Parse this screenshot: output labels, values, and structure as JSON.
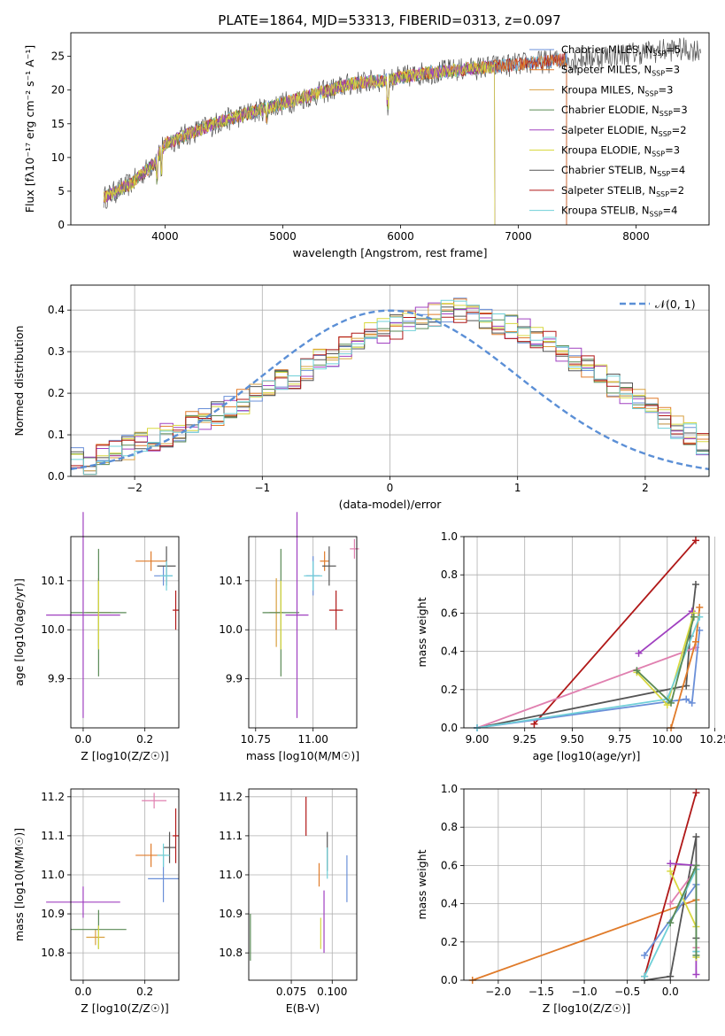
{
  "figure_title": "PLATE=1864, MJD=53313, FIBERID=0313, z=0.097",
  "model_colors": [
    "#6a8fd8",
    "#e07b2a",
    "#d8a040",
    "#5a8a55",
    "#a040c0",
    "#d8d840",
    "#555555",
    "#b01818",
    "#70d0d8"
  ],
  "chart_data": [
    {
      "id": "spectrum",
      "type": "line",
      "xlabel": "wavelength [Angstrom, rest frame]",
      "ylabel": "Flux [fλ10⁻¹⁷ erg cm⁻² s⁻¹ A⁻¹]",
      "xlim": [
        3200,
        8620
      ],
      "ylim": [
        0,
        28.5
      ],
      "xticks": [
        4000,
        5000,
        6000,
        7000,
        8000
      ],
      "yticks": [
        0,
        5,
        10,
        15,
        20,
        25
      ],
      "grid": false,
      "legend_position": "right",
      "continuum": {
        "x": [
          3480,
          3700,
          3900,
          4000,
          4200,
          4500,
          4800,
          5000,
          5300,
          5600,
          5900,
          6200,
          6500,
          6800,
          7100,
          7400,
          7700,
          8000,
          8300,
          8550
        ],
        "y": [
          4,
          6,
          9,
          12,
          13.5,
          15.5,
          17,
          18,
          19.5,
          21,
          21.5,
          22.5,
          23,
          23.5,
          24,
          24.5,
          25,
          25.5,
          26,
          26
        ]
      },
      "series": [
        {
          "name": "Chabrier MILES, N_SSP=5",
          "label_main": "Chabrier MILES, N",
          "label_sub": "SSP",
          "label_tail": "=5",
          "xmax": 7410
        },
        {
          "name": "Salpeter MILES, N_SSP=3",
          "label_main": "Salpeter MILES, N",
          "label_sub": "SSP",
          "label_tail": "=3",
          "xmax": 7410
        },
        {
          "name": "Kroupa MILES, N_SSP=3",
          "label_main": "Kroupa MILES, N",
          "label_sub": "SSP",
          "label_tail": "=3",
          "xmax": 6800
        },
        {
          "name": "Chabrier ELODIE, N_SSP=3",
          "label_main": "Chabrier ELODIE, N",
          "label_sub": "SSP",
          "label_tail": "=3",
          "xmax": 6800
        },
        {
          "name": "Salpeter ELODIE, N_SSP=2",
          "label_main": "Salpeter ELODIE, N",
          "label_sub": "SSP",
          "label_tail": "=2",
          "xmax": 6800
        },
        {
          "name": "Kroupa ELODIE, N_SSP=3",
          "label_main": "Kroupa ELODIE, N",
          "label_sub": "SSP",
          "label_tail": "=3",
          "xmax": 6800
        },
        {
          "name": "Chabrier STELIB, N_SSP=4",
          "label_main": "Chabrier STELIB, N",
          "label_sub": "SSP",
          "label_tail": "=4",
          "xmax": 8550
        },
        {
          "name": "Salpeter STELIB, N_SSP=2",
          "label_main": "Salpeter STELIB, N",
          "label_sub": "SSP",
          "label_tail": "=2",
          "xmax": 7410
        },
        {
          "name": "Kroupa STELIB, N_SSP=4",
          "label_main": "Kroupa STELIB, N",
          "label_sub": "SSP",
          "label_tail": "=4",
          "xmax": 7410
        }
      ]
    },
    {
      "id": "residuals",
      "type": "histogram",
      "xlabel": "(data-model)/error",
      "ylabel": "Normed distribution",
      "xlim": [
        -2.5,
        2.5
      ],
      "ylim": [
        0,
        0.46
      ],
      "xticks": [
        -2,
        -1,
        0,
        1,
        2
      ],
      "yticks": [
        0.0,
        0.1,
        0.2,
        0.3,
        0.4
      ],
      "grid": true,
      "legend_position": "top-right",
      "legend_label": "𝒩(0, 1)",
      "bin_width": 0.1,
      "bin_start": -2.5,
      "typical_bin_values": [
        0.04,
        0.03,
        0.05,
        0.06,
        0.07,
        0.08,
        0.09,
        0.1,
        0.11,
        0.13,
        0.14,
        0.15,
        0.17,
        0.18,
        0.2,
        0.21,
        0.23,
        0.24,
        0.26,
        0.28,
        0.29,
        0.31,
        0.32,
        0.34,
        0.35,
        0.36,
        0.37,
        0.38,
        0.39,
        0.4,
        0.4,
        0.39,
        0.38,
        0.37,
        0.36,
        0.35,
        0.33,
        0.32,
        0.3,
        0.28,
        0.26,
        0.24,
        0.22,
        0.2,
        0.18,
        0.16,
        0.14,
        0.12,
        0.1,
        0.08
      ],
      "normal_curve": {
        "mean": 0,
        "sigma": 1
      }
    },
    {
      "id": "age_vs_Z",
      "type": "errorbar",
      "xlabel": "Z [log10(Z/Z☉)]",
      "ylabel": "age [log10(age/yr)]",
      "xlim": [
        -0.04,
        0.31
      ],
      "ylim": [
        9.8,
        10.19
      ],
      "xticks": [
        0.0,
        0.2
      ],
      "yticks": [
        9.9,
        10.0,
        10.1
      ],
      "grid": true,
      "points": [
        {
          "x": 0.26,
          "y": 10.11,
          "xerr": 0.03,
          "yerr": 0.02,
          "c": 0
        },
        {
          "x": 0.22,
          "y": 10.14,
          "xerr": 0.05,
          "yerr": 0.02,
          "c": 1
        },
        {
          "x": 0.05,
          "y": 10.035,
          "xerr": 0.04,
          "yerr": 0.07,
          "c": 2
        },
        {
          "x": 0.05,
          "y": 10.035,
          "xerr": 0.09,
          "yerr": 0.13,
          "c": 3
        },
        {
          "x": 0.0,
          "y": 10.03,
          "xerr": 0.12,
          "yerr": 0.21,
          "c": 4
        },
        {
          "x": 0.05,
          "y": 10.03,
          "xerr": 0.0,
          "yerr": 0.07,
          "c": 5
        },
        {
          "x": 0.27,
          "y": 10.13,
          "xerr": 0.03,
          "yerr": 0.04,
          "c": 6
        },
        {
          "x": 0.3,
          "y": 10.04,
          "xerr": 0.01,
          "yerr": 0.04,
          "c": 7
        },
        {
          "x": 0.27,
          "y": 10.11,
          "xerr": 0.02,
          "yerr": 0.03,
          "c": 8
        }
      ]
    },
    {
      "id": "age_vs_mass",
      "type": "errorbar",
      "xlabel": "mass [log10(M/M☉)]",
      "ylabel": "",
      "xlim": [
        10.72,
        11.19
      ],
      "ylim": [
        9.8,
        10.19
      ],
      "xticks": [
        10.75,
        11.0
      ],
      "yticks": [
        9.9,
        10.0,
        10.1
      ],
      "grid": true,
      "points": [
        {
          "x": 11.0,
          "y": 10.11,
          "xerr": 0.03,
          "yerr": 0.04,
          "c": 0
        },
        {
          "x": 11.05,
          "y": 10.14,
          "xerr": 0.02,
          "yerr": 0.02,
          "c": 1
        },
        {
          "x": 10.84,
          "y": 10.035,
          "xerr": 0.03,
          "yerr": 0.07,
          "c": 2
        },
        {
          "x": 10.86,
          "y": 10.035,
          "xerr": 0.08,
          "yerr": 0.13,
          "c": 3
        },
        {
          "x": 10.93,
          "y": 10.03,
          "xerr": 0.05,
          "yerr": 0.21,
          "c": 4
        },
        {
          "x": 10.86,
          "y": 10.03,
          "xerr": 0.0,
          "yerr": 0.07,
          "c": 5
        },
        {
          "x": 11.07,
          "y": 10.13,
          "xerr": 0.03,
          "yerr": 0.04,
          "c": 6
        },
        {
          "x": 11.1,
          "y": 10.04,
          "xerr": 0.03,
          "yerr": 0.04,
          "c": 7
        },
        {
          "x": 11.0,
          "y": 10.11,
          "xerr": 0.04,
          "yerr": 0.03,
          "c": 8
        },
        {
          "x": 11.18,
          "y": 10.165,
          "xerr": 0.02,
          "yerr": 0.02,
          "c": 9
        }
      ]
    },
    {
      "id": "weight_vs_age",
      "type": "line",
      "xlabel": "age [log10(age/yr)]",
      "ylabel": "mass weight",
      "xlim": [
        8.93,
        10.22
      ],
      "ylim": [
        0,
        1.0
      ],
      "xticks": [
        9.0,
        9.25,
        9.5,
        9.75,
        10.0,
        10.25
      ],
      "yticks": [
        0.0,
        0.2,
        0.4,
        0.6,
        0.8,
        1.0
      ],
      "grid": true,
      "series": [
        {
          "c": 7,
          "x": [
            9.3,
            10.15
          ],
          "y": [
            0.02,
            0.98
          ]
        },
        {
          "c": 6,
          "x": [
            9.0,
            10.1,
            10.12,
            10.15
          ],
          "y": [
            0.0,
            0.22,
            0.48,
            0.75
          ]
        },
        {
          "c": 4,
          "x": [
            9.85,
            10.13
          ],
          "y": [
            0.39,
            0.61
          ]
        },
        {
          "c": 9,
          "x": [
            9.0,
            10.15
          ],
          "y": [
            0.0,
            0.42
          ]
        },
        {
          "c": 0,
          "x": [
            9.0,
            10.1,
            10.13,
            10.17
          ],
          "y": [
            0.0,
            0.15,
            0.13,
            0.51
          ]
        },
        {
          "c": 1,
          "x": [
            10.02,
            10.15,
            10.17
          ],
          "y": [
            0.0,
            0.45,
            0.63
          ]
        },
        {
          "c": 5,
          "x": [
            9.84,
            10.0,
            10.14
          ],
          "y": [
            0.29,
            0.12,
            0.6
          ]
        },
        {
          "c": 8,
          "x": [
            9.0,
            10.0,
            10.17
          ],
          "y": [
            0.0,
            0.15,
            0.58
          ]
        },
        {
          "c": 3,
          "x": [
            9.84,
            10.02,
            10.14
          ],
          "y": [
            0.3,
            0.13,
            0.58
          ]
        }
      ]
    },
    {
      "id": "mass_vs_Z",
      "type": "errorbar",
      "xlabel": "Z [log10(Z/Z☉)]",
      "ylabel": "mass [log10(M/M☉)]",
      "xlim": [
        -0.04,
        0.31
      ],
      "ylim": [
        10.73,
        11.22
      ],
      "xticks": [
        0.0,
        0.2
      ],
      "yticks": [
        10.8,
        10.9,
        11.0,
        11.1,
        11.2
      ],
      "grid": true,
      "points": [
        {
          "x": 0.26,
          "y": 10.99,
          "xerr": 0.05,
          "yerr": 0.06,
          "c": 0
        },
        {
          "x": 0.22,
          "y": 11.05,
          "xerr": 0.05,
          "yerr": 0.03,
          "c": 1
        },
        {
          "x": 0.04,
          "y": 10.84,
          "xerr": 0.03,
          "yerr": 0.02,
          "c": 2
        },
        {
          "x": 0.05,
          "y": 10.86,
          "xerr": 0.09,
          "yerr": 0.05,
          "c": 3
        },
        {
          "x": 0.0,
          "y": 10.93,
          "xerr": 0.12,
          "yerr": 0.04,
          "c": 4
        },
        {
          "x": 0.05,
          "y": 10.84,
          "xerr": 0.0,
          "yerr": 0.03,
          "c": 5
        },
        {
          "x": 0.28,
          "y": 11.07,
          "xerr": 0.02,
          "yerr": 0.04,
          "c": 6
        },
        {
          "x": 0.3,
          "y": 11.1,
          "xerr": 0.01,
          "yerr": 0.07,
          "c": 7
        },
        {
          "x": 0.26,
          "y": 11.05,
          "xerr": 0.02,
          "yerr": 0.03,
          "c": 8
        },
        {
          "x": 0.23,
          "y": 11.19,
          "xerr": 0.04,
          "yerr": 0.02,
          "c": 9
        }
      ]
    },
    {
      "id": "mass_vs_ebv",
      "type": "errorbar",
      "xlabel": "E(B-V)",
      "ylabel": "",
      "xlim": [
        0.049,
        0.115
      ],
      "ylim": [
        10.73,
        11.22
      ],
      "xticks": [
        0.075,
        0.1
      ],
      "yticks": [
        10.8,
        10.9,
        11.0,
        11.1,
        11.2
      ],
      "grid": true,
      "points": [
        {
          "x": 0.05,
          "y": 10.84,
          "xerr": 0.0,
          "yerr": 0.06,
          "c": 3
        },
        {
          "x": 0.084,
          "y": 11.15,
          "xerr": 0.0,
          "yerr": 0.05,
          "c": 7
        },
        {
          "x": 0.092,
          "y": 11.0,
          "xerr": 0.0,
          "yerr": 0.03,
          "c": 1
        },
        {
          "x": 0.093,
          "y": 10.85,
          "xerr": 0.0,
          "yerr": 0.04,
          "c": 5
        },
        {
          "x": 0.095,
          "y": 10.88,
          "xerr": 0.0,
          "yerr": 0.08,
          "c": 4
        },
        {
          "x": 0.097,
          "y": 11.06,
          "xerr": 0.0,
          "yerr": 0.05,
          "c": 6
        },
        {
          "x": 0.097,
          "y": 11.03,
          "xerr": 0.0,
          "yerr": 0.04,
          "c": 8
        },
        {
          "x": 0.109,
          "y": 10.99,
          "xerr": 0.0,
          "yerr": 0.06,
          "c": 0
        }
      ]
    },
    {
      "id": "weight_vs_Z",
      "type": "line",
      "xlabel": "Z [log10(Z/Z☉)]",
      "ylabel": "mass weight",
      "xlim": [
        -2.4,
        0.45
      ],
      "ylim": [
        0,
        1.0
      ],
      "xticks": [
        -2.0,
        -1.5,
        -1.0,
        -0.5,
        0.0
      ],
      "yticks": [
        0.0,
        0.2,
        0.4,
        0.6,
        0.8,
        1.0
      ],
      "grid": true,
      "series": [
        {
          "c": 1,
          "x": [
            -2.3,
            0.3
          ],
          "y": [
            0.0,
            0.42
          ]
        },
        {
          "c": 7,
          "x": [
            -0.3,
            0.3
          ],
          "y": [
            0.02,
            0.98
          ]
        },
        {
          "c": 6,
          "x": [
            -0.3,
            0.0,
            0.3,
            0.3
          ],
          "y": [
            0.0,
            0.02,
            0.75,
            0.22
          ]
        },
        {
          "c": 0,
          "x": [
            -0.3,
            0.3,
            0.3
          ],
          "y": [
            0.13,
            0.5,
            0.15
          ]
        },
        {
          "c": 4,
          "x": [
            0.0,
            0.3,
            0.3
          ],
          "y": [
            0.61,
            0.6,
            0.03
          ]
        },
        {
          "c": 9,
          "x": [
            0.0,
            0.3,
            0.3
          ],
          "y": [
            0.4,
            0.58,
            0.17
          ]
        },
        {
          "c": 5,
          "x": [
            0.0,
            0.3,
            0.3
          ],
          "y": [
            0.57,
            0.28,
            0.12
          ]
        },
        {
          "c": 8,
          "x": [
            -0.3,
            0.3,
            0.3
          ],
          "y": [
            0.02,
            0.58,
            0.15
          ]
        },
        {
          "c": 3,
          "x": [
            0.0,
            0.3,
            0.3
          ],
          "y": [
            0.3,
            0.6,
            0.13
          ]
        }
      ]
    }
  ]
}
